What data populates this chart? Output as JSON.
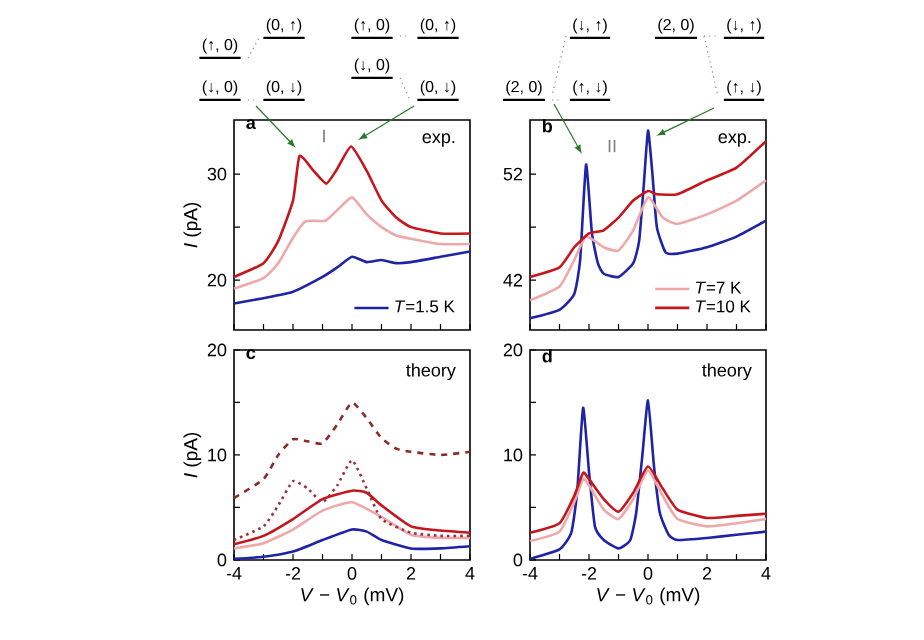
{
  "chart_data": [
    {
      "type": "line",
      "title": "a",
      "subtitle": "exp.",
      "ylabel": "*I* (pA)",
      "annotations": [
        "(↑, 0)",
        "(0, ↑)",
        "(↓, 0)",
        "(0, ↓)",
        "(↑, 0)",
        "(0, ↑)",
        "(↓, 0)",
        "(0, ↓)",
        "I"
      ],
      "xlim": [
        -4,
        4
      ],
      "ylim": [
        15.3,
        35.1
      ],
      "xticks": [
        -4,
        {
          "value": -3,
          "label": null
        },
        -2,
        {
          "value": -1,
          "label": null
        },
        0,
        {
          "value": 1,
          "label": null
        },
        2,
        {
          "value": 3,
          "label": null
        },
        4
      ],
      "yticks": [
        20,
        {
          "value": 25,
          "label": null
        },
        30
      ],
      "tick_labels": "y",
      "legend": "bottom right",
      "series": [
        {
          "name": "*T*=1.5 K",
          "color": "#1f24a6",
          "x": [
            -4,
            -3,
            -2,
            -1,
            -0.5,
            0,
            0.5,
            1,
            1.5,
            2,
            3,
            4
          ],
          "values": [
            17.8,
            18.3,
            18.9,
            20.3,
            21.2,
            22.2,
            21.7,
            21.9,
            21.6,
            21.7,
            22.2,
            22.7
          ]
        },
        {
          "color": "#efa8a8",
          "x": [
            -4,
            -3,
            -2.5,
            -2,
            -1.6,
            -1.3,
            -0.9,
            -0.5,
            0,
            0.5,
            1,
            1.5,
            2,
            3,
            4
          ],
          "values": [
            19.2,
            20.2,
            21.6,
            24,
            25.5,
            25.6,
            25.6,
            26.6,
            27.8,
            26.2,
            25,
            24.2,
            23.9,
            23.4,
            23.4
          ]
        },
        {
          "color": "#c4161c",
          "x": [
            -4,
            -3,
            -2.5,
            -2,
            -1.78,
            -1.3,
            -0.87,
            -0.5,
            -0.03,
            0.5,
            1,
            1.5,
            2,
            3,
            4
          ],
          "values": [
            20.3,
            21.6,
            23.7,
            27.5,
            31.7,
            30.3,
            29.1,
            30.5,
            32.6,
            30.3,
            27.5,
            25.9,
            25,
            24.4,
            24.4
          ]
        }
      ]
    },
    {
      "type": "line",
      "title": "b",
      "subtitle": "exp.",
      "annotations": [
        "(↓, ↑)",
        "(2, 0)",
        "(↓, ↑)",
        "(2, 0)",
        "(↑, ↓)",
        "(↑, ↓)",
        "II"
      ],
      "xlim": [
        -4,
        4
      ],
      "ylim": [
        37.3,
        57.1
      ],
      "xticks": [
        -4,
        {
          "value": -3,
          "label": null
        },
        -2,
        {
          "value": -1,
          "label": null
        },
        0,
        {
          "value": 1,
          "label": null
        },
        2,
        {
          "value": 3,
          "label": null
        },
        4
      ],
      "yticks": [
        42,
        {
          "value": 47,
          "label": null
        },
        52
      ],
      "tick_labels": "y",
      "legend": "bottom right",
      "series": [
        {
          "color": "#1f24a6",
          "x": [
            -4,
            -3,
            -2.5,
            -2.3,
            -2.1,
            -1.9,
            -1.7,
            -1.5,
            -1,
            -0.5,
            -0.3,
            -0.15,
            0,
            0.15,
            0.3,
            0.6,
            1,
            2,
            3,
            4
          ],
          "values": [
            38.4,
            39.2,
            40.7,
            43.9,
            52.9,
            46.4,
            43.6,
            42.6,
            42.3,
            43.6,
            45.7,
            50.7,
            56.1,
            52,
            47,
            44.6,
            44.5,
            45.1,
            46.1,
            47.6
          ]
        },
        {
          "name": "*T*=7 K",
          "color": "#efa8a8",
          "x": [
            -4,
            -3,
            -2.5,
            -2.1,
            -1.5,
            -1,
            -0.5,
            0,
            0.5,
            1,
            2,
            3,
            4
          ],
          "values": [
            40.1,
            41.4,
            43.9,
            46.1,
            45.1,
            44.8,
            46.7,
            49.8,
            47.9,
            47.3,
            48.2,
            49.5,
            51.4
          ]
        },
        {
          "name": "*T*=10 K",
          "color": "#c4161c",
          "x": [
            -4,
            -3,
            -2.5,
            -2,
            -1.5,
            -1,
            -0.5,
            0,
            0.3,
            1,
            2,
            3,
            4
          ],
          "values": [
            42.3,
            43.2,
            45.1,
            46.4,
            46.7,
            47.9,
            49.5,
            50.4,
            50.1,
            50.1,
            51.4,
            52.6,
            55.1
          ]
        }
      ]
    },
    {
      "type": "line",
      "title": "c",
      "subtitle": "theory",
      "ylabel": "*I* (pA)",
      "xlabel": "*V* − *V*$_{0}$ (mV)",
      "xlim": [
        -4,
        4
      ],
      "ylim": [
        0,
        20
      ],
      "xticks": [
        -4,
        {
          "value": -3,
          "label": null
        },
        -2,
        {
          "value": -1,
          "label": null
        },
        0,
        {
          "value": 1,
          "label": null
        },
        2,
        {
          "value": 3,
          "label": null
        },
        4
      ],
      "yticks": [
        0,
        {
          "value": 5,
          "label": null
        },
        10,
        {
          "value": 15,
          "label": null
        },
        20
      ],
      "series": [
        {
          "color": "#1f24a6",
          "x": [
            -4,
            -3,
            -2,
            -1,
            0,
            0.5,
            1,
            2,
            3,
            4
          ],
          "values": [
            0.1,
            0.3,
            0.8,
            1.9,
            2.9,
            2.7,
            1.9,
            1.1,
            1.1,
            1.3
          ]
        },
        {
          "color": "#efa8a8",
          "x": [
            -4,
            -3,
            -2,
            -1,
            0,
            1,
            2,
            3,
            4
          ],
          "values": [
            1.1,
            1.6,
            2.9,
            4.7,
            5.5,
            4.1,
            2.4,
            2.1,
            2.1
          ]
        },
        {
          "color": "#c4161c",
          "x": [
            -4,
            -3,
            -2,
            -1,
            0,
            0.5,
            1,
            2,
            3,
            4
          ],
          "values": [
            1.5,
            2.3,
            3.9,
            5.8,
            6.6,
            6.4,
            5.2,
            3.2,
            2.8,
            2.6
          ]
        },
        {
          "color": "#9a3040",
          "line_style": "dotted",
          "x": [
            -4,
            -3,
            -2.5,
            -2,
            -1.5,
            -1,
            -0.5,
            0,
            0.5,
            1,
            2,
            3,
            4
          ],
          "values": [
            1.9,
            3.2,
            5.2,
            7.5,
            6.8,
            5.5,
            7.1,
            9.5,
            6.8,
            3.9,
            2.6,
            2.3,
            2.3
          ]
        },
        {
          "color": "#8b2a2a",
          "line_style": "dashed",
          "x": [
            -4,
            -3,
            -2.5,
            -2,
            -1.5,
            -1,
            -0.5,
            0,
            0.5,
            1,
            1.5,
            2,
            3,
            4
          ],
          "values": [
            5.9,
            7.7,
            10,
            11.5,
            11.3,
            11.1,
            12.9,
            15,
            13.5,
            11.6,
            10.6,
            10.3,
            10,
            10.3
          ]
        }
      ]
    },
    {
      "type": "line",
      "title": "d",
      "subtitle": "theory",
      "xlabel": "*V* − *V*$_{0}$ (mV)",
      "xlim": [
        -4,
        4
      ],
      "ylim": [
        0,
        20
      ],
      "xticks": [
        -4,
        {
          "value": -3,
          "label": null
        },
        -2,
        {
          "value": -1,
          "label": null
        },
        0,
        {
          "value": 1,
          "label": null
        },
        2,
        {
          "value": 3,
          "label": null
        },
        4
      ],
      "yticks": [
        0,
        {
          "value": 5,
          "label": null
        },
        10,
        {
          "value": 15,
          "label": null
        },
        20
      ],
      "series": [
        {
          "color": "#1f24a6",
          "x": [
            -4,
            -3,
            -2.6,
            -2.4,
            -2.2,
            -2,
            -1.8,
            -1.5,
            -1,
            -0.6,
            -0.4,
            -0.2,
            0,
            0.2,
            0.4,
            0.7,
            1,
            2,
            3,
            4
          ],
          "values": [
            0.1,
            1,
            2.6,
            6.5,
            14.5,
            8.4,
            3.2,
            1.9,
            1.1,
            1.9,
            4.5,
            9.7,
            15.2,
            9,
            4.5,
            2.4,
            1.9,
            2.1,
            2.4,
            2.7
          ]
        },
        {
          "color": "#efa8a8",
          "x": [
            -4,
            -3,
            -2.5,
            -2.2,
            -2,
            -1.5,
            -1,
            -0.5,
            0,
            0.5,
            1,
            2,
            3,
            4
          ],
          "values": [
            1.8,
            2.7,
            5.5,
            7.7,
            7.1,
            4.8,
            3.9,
            5.8,
            8.5,
            6.1,
            3.9,
            3.2,
            3.5,
            3.9
          ]
        },
        {
          "color": "#c4161c",
          "x": [
            -4,
            -3,
            -2.5,
            -2.2,
            -2,
            -1.5,
            -1,
            -0.5,
            0,
            0.5,
            1,
            2,
            3,
            4
          ],
          "values": [
            2.6,
            3.5,
            6.1,
            8.3,
            7.7,
            5.8,
            4.6,
            6.4,
            8.9,
            6.8,
            4.8,
            4,
            4.2,
            4.4
          ]
        }
      ]
    }
  ]
}
